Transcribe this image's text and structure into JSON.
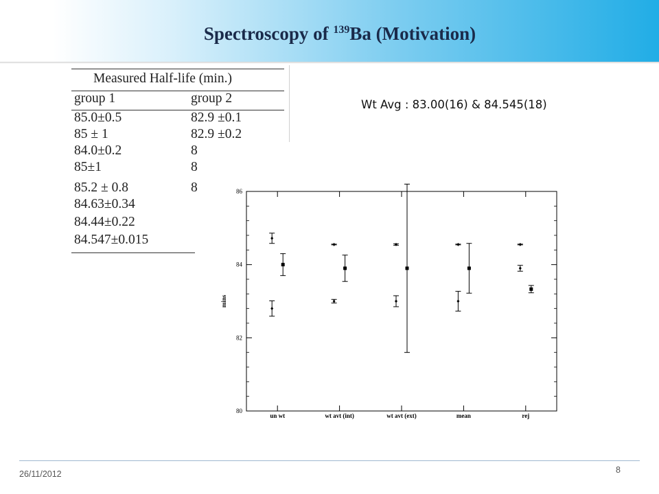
{
  "slide": {
    "title_main": "Spectroscopy of ",
    "title_sup": "139",
    "title_rest": "Ba (Motivation)",
    "wt_avg": "Wt Avg : 83.00(16) & 84.545(18)",
    "date": "26/11/2012",
    "page_number": "8"
  },
  "table": {
    "caption": "Measured Half-life (min.)",
    "headers": [
      "group 1",
      "group 2"
    ],
    "rows": [
      [
        "85.0±0.5",
        "82.9 ±0.1"
      ],
      [
        "85 ± 1",
        "82.9 ±0.2"
      ],
      [
        "84.0±0.2",
        "8"
      ],
      [
        "85±1",
        "8"
      ],
      [
        "85.2 ± 0.8",
        "8"
      ],
      [
        "84.63±0.34",
        ""
      ],
      [
        "84.44±0.22",
        ""
      ],
      [
        "84.547±0.015",
        ""
      ]
    ]
  },
  "chart_data": {
    "type": "scatter",
    "title": "",
    "xlabel": "",
    "ylabel": "mins",
    "categories": [
      "un wt",
      "wt avt (int)",
      "wt avt (ext)",
      "mean",
      "rej"
    ],
    "ylim": [
      80,
      86
    ],
    "yticks": [
      80,
      82,
      84,
      86
    ],
    "grid": false,
    "series": [
      {
        "marker": "diamond",
        "values": [
          84.72,
          84.55,
          84.55,
          84.55,
          84.55
        ],
        "errors": [
          0.14,
          0.01,
          0.02,
          0.01,
          0.01
        ]
      },
      {
        "marker": "diamond",
        "values": [
          82.8,
          83.0,
          83.0,
          83.0,
          83.9
        ],
        "errors": [
          0.21,
          0.05,
          0.15,
          0.27,
          0.08
        ]
      },
      {
        "marker": "square",
        "values": [
          84.0,
          83.9,
          83.9,
          83.9,
          83.33
        ],
        "errors": [
          0.3,
          0.36,
          2.3,
          0.68,
          0.1
        ]
      }
    ]
  }
}
